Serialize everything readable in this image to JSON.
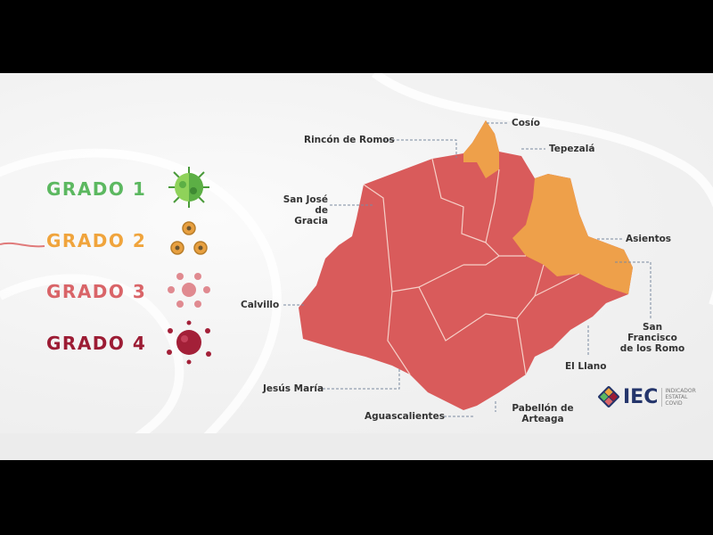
{
  "legend": [
    {
      "label": "GRADO 1",
      "color": "#5cb860",
      "icon": "virus-green-icon"
    },
    {
      "label": "GRADO 2",
      "color": "#f0a43c",
      "icon": "virus-cluster-orange-icon"
    },
    {
      "label": "GRADO 3",
      "color": "#d96468",
      "icon": "virus-cluster-pink-icon"
    },
    {
      "label": "GRADO 4",
      "color": "#9c1c34",
      "icon": "virus-darkred-icon"
    }
  ],
  "map": {
    "colors": {
      "grado2": "#eea04a",
      "grado3": "#d95b5b"
    },
    "municipalities": [
      {
        "name": "Cosío",
        "grado": 2
      },
      {
        "name": "Rincón de Romos",
        "grado": 3
      },
      {
        "name": "Tepezalá",
        "grado": 3
      },
      {
        "name": "San José de Gracia",
        "grado": 3
      },
      {
        "name": "Asientos",
        "grado": 2
      },
      {
        "name": "Calvillo",
        "grado": 3
      },
      {
        "name": "San Francisco de los Romo",
        "grado": 3
      },
      {
        "name": "El Llano",
        "grado": 3
      },
      {
        "name": "Jesús María",
        "grado": 3
      },
      {
        "name": "Aguascalientes",
        "grado": 3
      },
      {
        "name": "Pabellón de Arteaga",
        "grado": 3
      }
    ]
  },
  "labels": {
    "cosio": "Cosío",
    "rincon": "Rincón de Romos",
    "tepezala": "Tepezalá",
    "sanjose1": "San José",
    "sanjose2": "de Gracia",
    "asientos": "Asientos",
    "calvillo": "Calvillo",
    "sanfran1": "San Francisco",
    "sanfran2": "de los Romo",
    "llano": "El Llano",
    "jesus": "Jesús María",
    "ags": "Aguascalientes",
    "pab1": "Pabellón de",
    "pab2": "Arteaga"
  },
  "logo": {
    "text": "IEC",
    "subtitle": [
      "INDICADOR",
      "ESTATAL",
      "COVID"
    ]
  }
}
